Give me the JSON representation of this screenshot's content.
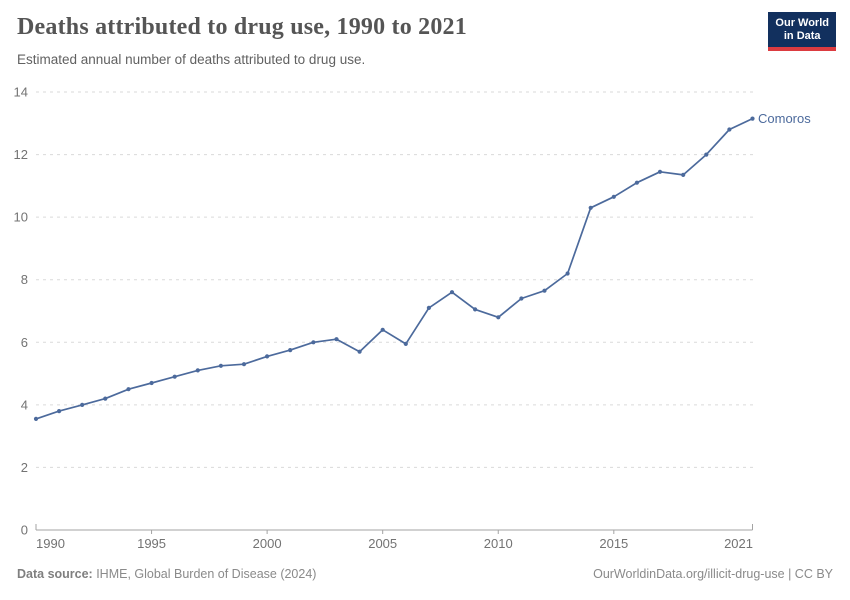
{
  "header": {
    "title": "Deaths attributed to drug use, 1990 to 2021",
    "subtitle": "Estimated annual number of deaths attributed to drug use.",
    "logo": {
      "line1": "Our World",
      "line2": "in Data"
    }
  },
  "chart_data": {
    "type": "line",
    "title": "Deaths attributed to drug use, 1990 to 2021",
    "xlabel": "",
    "ylabel": "",
    "xlim": [
      1990,
      2021
    ],
    "ylim": [
      0,
      14
    ],
    "x_ticks": [
      1990,
      1995,
      2000,
      2005,
      2010,
      2015,
      2021
    ],
    "y_ticks": [
      0,
      2,
      4,
      6,
      8,
      10,
      12,
      14
    ],
    "grid": "horizontal-dashed",
    "legend_position": "end-of-line-label",
    "series": [
      {
        "name": "Comoros",
        "color": "#4c6a9c",
        "x": [
          1990,
          1991,
          1992,
          1993,
          1994,
          1995,
          1996,
          1997,
          1998,
          1999,
          2000,
          2001,
          2002,
          2003,
          2004,
          2005,
          2006,
          2007,
          2008,
          2009,
          2010,
          2011,
          2012,
          2013,
          2014,
          2015,
          2016,
          2017,
          2018,
          2019,
          2020,
          2021
        ],
        "values": [
          3.55,
          3.8,
          4.0,
          4.2,
          4.5,
          4.7,
          4.9,
          5.1,
          5.25,
          5.3,
          5.55,
          5.75,
          6.0,
          6.1,
          5.7,
          6.4,
          5.95,
          7.1,
          7.6,
          7.05,
          6.8,
          7.4,
          7.65,
          8.2,
          10.3,
          10.65,
          11.1,
          11.45,
          11.35,
          12.0,
          12.8,
          13.15
        ]
      }
    ]
  },
  "footer": {
    "source_label": "Data source:",
    "source_text": " IHME, Global Burden of Disease (2024)",
    "attribution": "OurWorldinData.org/illicit-drug-use | CC BY"
  },
  "colors": {
    "series_line": "#4c6a9c",
    "logo_navy": "#12305e",
    "logo_red": "#dc3b40",
    "grid": "#dadada",
    "axis": "#a3a3a3",
    "tick_label": "#737373",
    "title_text": "#555555"
  }
}
